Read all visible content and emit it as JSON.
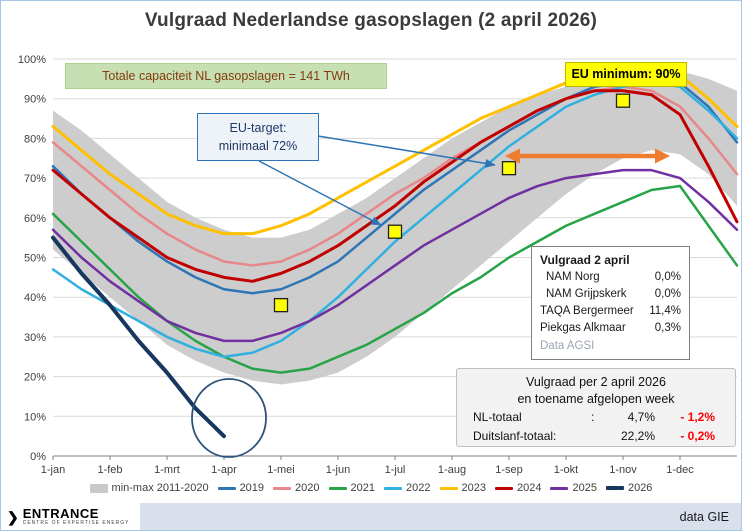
{
  "title": "Vulgraad Nederlandse gasopslagen (2 april 2026)",
  "annotations": {
    "capacity_note": "Totale capaciteit NL gasopslagen = 141 TWh",
    "eu_target_line1": "EU-target:",
    "eu_target_line2": "minimaal 72%",
    "eu_minimum": "EU minimum: 90%"
  },
  "storage_table": {
    "title": "Vulgraad 2 april",
    "rows": [
      {
        "name": "NAM Norg",
        "value": "0,0%"
      },
      {
        "name": "NAM Grijpskerk",
        "value": "0,0%"
      },
      {
        "name": "TAQA  Bergermeer",
        "value": "11,4%"
      },
      {
        "name": "Piekgas Alkmaar",
        "value": "0,3%"
      }
    ],
    "source": "Data AGSI"
  },
  "summary_box": {
    "line1": "Vulgraad per 2 april 2026",
    "line2": "en toename afgelopen week",
    "rows": [
      {
        "label": "NL-totaal",
        "sep": ":",
        "value": "4,7%",
        "delta": "- 1,2%"
      },
      {
        "label": "Duitslanf-totaal:",
        "sep": "",
        "value": "22,2%",
        "delta": "- 0,2%"
      }
    ]
  },
  "footer": {
    "logo": "ENTRANCE",
    "logo_sub": "CENTRE OF EXPERTISE ENERGY",
    "source": "data GIE"
  },
  "chart_data": {
    "type": "line",
    "title": "Vulgraad Nederlandse gasopslagen (2 april 2026)",
    "ylim": [
      0,
      100
    ],
    "ytick_step": 10,
    "categories": [
      "1-jan",
      "1-feb",
      "1-mrt",
      "1-apr",
      "1-mei",
      "1-jun",
      "1-jul",
      "1-aug",
      "1-sep",
      "1-okt",
      "1-nov",
      "1-dec"
    ],
    "x_step": 0.5,
    "band": {
      "name": "min-max 2011-2020",
      "color": "#c9c9c9",
      "min": [
        52,
        46,
        40,
        34,
        28,
        24,
        21,
        19,
        18,
        19,
        21,
        25,
        30,
        36,
        42,
        48,
        54,
        60,
        66,
        71,
        75,
        77,
        76,
        71,
        63
      ],
      "max": [
        87,
        82,
        76,
        70,
        64,
        60,
        57,
        55,
        55,
        57,
        61,
        65,
        70,
        75,
        80,
        84,
        88,
        91,
        93,
        95,
        96,
        97,
        97,
        95,
        92
      ]
    },
    "series": [
      {
        "name": "2019",
        "color": "#2e75b6",
        "width": 2.5,
        "values": [
          73,
          66,
          60,
          54,
          49,
          45,
          42,
          41,
          42,
          45,
          49,
          55,
          61,
          67,
          72,
          77,
          82,
          86,
          90,
          93,
          94,
          95,
          94,
          88,
          79
        ]
      },
      {
        "name": "2020",
        "color": "#e8878a",
        "width": 2.5,
        "values": [
          79,
          73,
          67,
          61,
          56,
          52,
          49,
          48,
          49,
          52,
          56,
          61,
          66,
          70,
          75,
          79,
          83,
          87,
          90,
          92,
          93,
          92,
          88,
          80,
          71
        ]
      },
      {
        "name": "2021",
        "color": "#27a348",
        "width": 2.5,
        "values": [
          61,
          54,
          47,
          40,
          34,
          29,
          25,
          22,
          21,
          22,
          25,
          28,
          32,
          36,
          41,
          45,
          50,
          54,
          58,
          61,
          64,
          67,
          68,
          58,
          48
        ]
      },
      {
        "name": "2022",
        "color": "#30b0e0",
        "width": 2.5,
        "values": [
          47,
          42,
          38,
          34,
          30,
          27,
          25,
          26,
          29,
          34,
          40,
          47,
          54,
          60,
          66,
          72,
          78,
          83,
          88,
          91,
          93,
          94,
          93,
          87,
          80
        ]
      },
      {
        "name": "2023",
        "color": "#ffc000",
        "width": 3,
        "values": [
          83,
          77,
          71,
          66,
          61,
          58,
          56,
          56,
          58,
          61,
          65,
          69,
          73,
          77,
          81,
          85,
          88,
          91,
          94,
          96,
          97,
          97,
          96,
          90,
          83
        ]
      },
      {
        "name": "2024",
        "color": "#c00000",
        "width": 3,
        "values": [
          72,
          66,
          60,
          55,
          50,
          47,
          45,
          44,
          46,
          49,
          53,
          58,
          63,
          69,
          74,
          79,
          83,
          87,
          90,
          92,
          92,
          91,
          86,
          73,
          59
        ]
      },
      {
        "name": "2025",
        "color": "#7030a0",
        "width": 2.5,
        "values": [
          57,
          50,
          44,
          39,
          34,
          31,
          29,
          29,
          31,
          34,
          38,
          43,
          48,
          53,
          57,
          61,
          65,
          68,
          70,
          71,
          72,
          72,
          70,
          64,
          57
        ]
      },
      {
        "name": "2026",
        "color": "#17375e",
        "width": 4,
        "values": [
          55,
          46,
          38,
          29,
          21,
          12,
          5
        ]
      }
    ],
    "eu_targets": [
      {
        "x": 4,
        "y": 38
      },
      {
        "x": 6,
        "y": 56.5
      },
      {
        "x": 8,
        "y": 72.5
      },
      {
        "x": 10,
        "y": 89.5
      }
    ]
  }
}
